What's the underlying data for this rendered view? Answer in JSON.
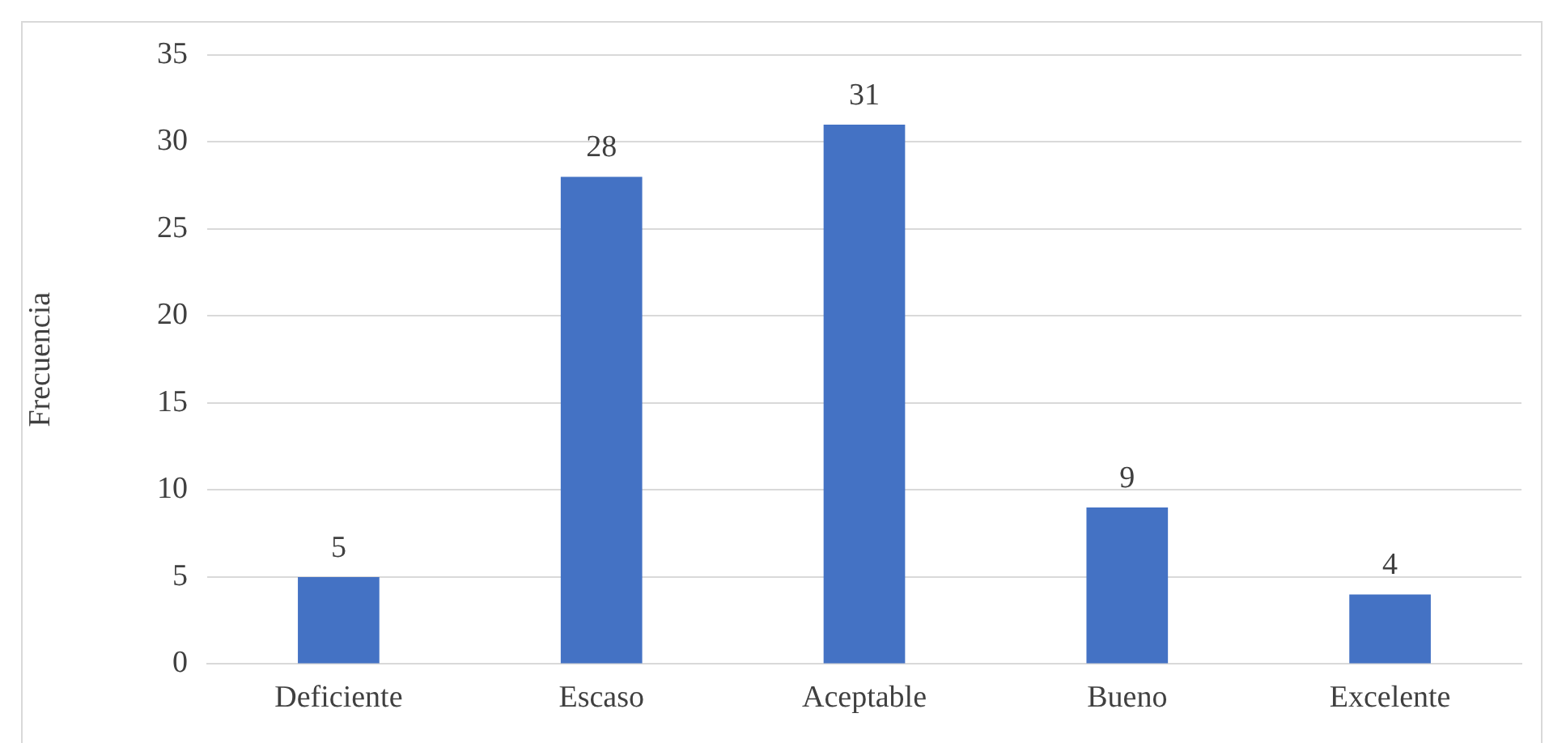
{
  "chart_data": {
    "type": "bar",
    "ylabel": "Frecuencia",
    "categories": [
      "Deficiente",
      "Escaso",
      "Aceptable",
      "Bueno",
      "Excelente"
    ],
    "values": [
      5,
      28,
      31,
      9,
      4
    ],
    "color": "#4472c4",
    "ylim": [
      0,
      35
    ],
    "yticks": [
      0,
      5,
      10,
      15,
      20,
      25,
      30,
      35
    ],
    "grid": "y",
    "data_labels": true
  }
}
